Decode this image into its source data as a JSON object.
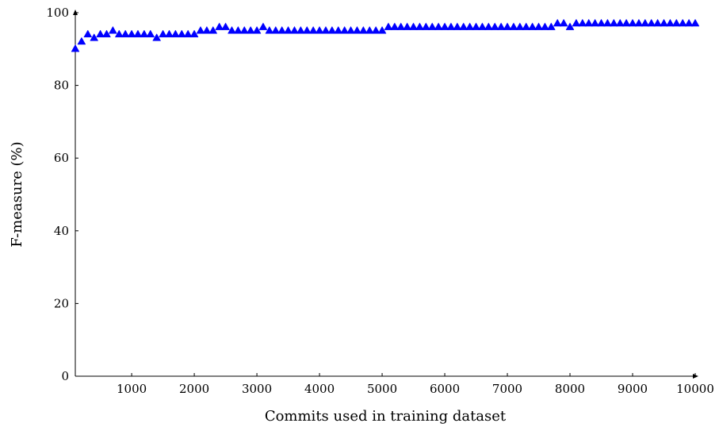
{
  "chart_data": {
    "type": "scatter",
    "xlabel": "Commits used in training dataset",
    "ylabel": "F-measure (%)",
    "xlim": [
      100,
      10000
    ],
    "ylim": [
      0,
      100
    ],
    "xticks": [
      1000,
      2000,
      3000,
      4000,
      5000,
      6000,
      7000,
      8000,
      9000,
      10000
    ],
    "yticks": [
      0,
      20,
      40,
      60,
      80,
      100
    ],
    "grid": false,
    "marker": "triangle",
    "color": "#0000ff",
    "series": [
      {
        "x": [
          100,
          200,
          300,
          400,
          500,
          600,
          700,
          800,
          900,
          1000,
          1100,
          1200,
          1300,
          1400,
          1500,
          1600,
          1700,
          1800,
          1900,
          2000,
          2100,
          2200,
          2300,
          2400,
          2500,
          2600,
          2700,
          2800,
          2900,
          3000,
          3100,
          3200,
          3300,
          3400,
          3500,
          3600,
          3700,
          3800,
          3900,
          4000,
          4100,
          4200,
          4300,
          4400,
          4500,
          4600,
          4700,
          4800,
          4900,
          5000,
          5100,
          5200,
          5300,
          5400,
          5500,
          5600,
          5700,
          5800,
          5900,
          6000,
          6100,
          6200,
          6300,
          6400,
          6500,
          6600,
          6700,
          6800,
          6900,
          7000,
          7100,
          7200,
          7300,
          7400,
          7500,
          7600,
          7700,
          7800,
          7900,
          8000,
          8100,
          8200,
          8300,
          8400,
          8500,
          8600,
          8700,
          8800,
          8900,
          9000,
          9100,
          9200,
          9300,
          9400,
          9500,
          9600,
          9700,
          9800,
          9900,
          10000
        ],
        "y": [
          90,
          92,
          94,
          93,
          94,
          94,
          95,
          94,
          94,
          94,
          94,
          94,
          94,
          93,
          94,
          94,
          94,
          94,
          94,
          94,
          95,
          95,
          95,
          96,
          96,
          95,
          95,
          95,
          95,
          95,
          96,
          95,
          95,
          95,
          95,
          95,
          95,
          95,
          95,
          95,
          95,
          95,
          95,
          95,
          95,
          95,
          95,
          95,
          95,
          95,
          96,
          96,
          96,
          96,
          96,
          96,
          96,
          96,
          96,
          96,
          96,
          96,
          96,
          96,
          96,
          96,
          96,
          96,
          96,
          96,
          96,
          96,
          96,
          96,
          96,
          96,
          96,
          97,
          97,
          96,
          97,
          97,
          97,
          97,
          97,
          97,
          97,
          97,
          97,
          97,
          97,
          97,
          97,
          97,
          97,
          97,
          97,
          97,
          97,
          97
        ]
      }
    ]
  }
}
